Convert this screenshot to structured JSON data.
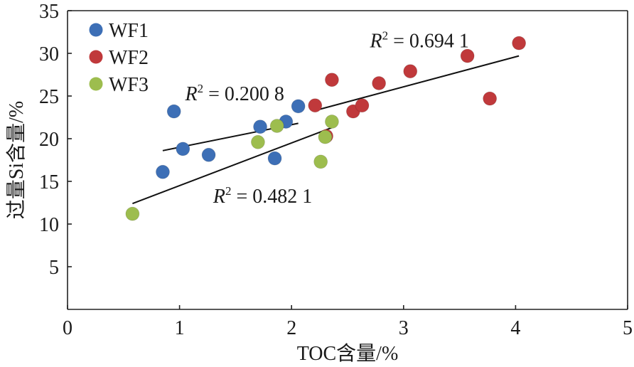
{
  "chart_data": {
    "type": "scatter",
    "xlabel": "TOC含量/%",
    "ylabel": "过量Si含量/%",
    "xlim": [
      0,
      5
    ],
    "ylim": [
      0,
      35
    ],
    "x_ticks": [
      "0",
      "1",
      "2",
      "3",
      "4",
      "5"
    ],
    "y_ticks": [
      "5",
      "10",
      "15",
      "20",
      "25",
      "30",
      "35"
    ],
    "grid": false,
    "legend_position": "top-left",
    "series": [
      {
        "name": "WF1",
        "color": "#3d6fb6",
        "points": [
          [
            0.85,
            16.1
          ],
          [
            0.95,
            23.2
          ],
          [
            1.03,
            18.8
          ],
          [
            1.26,
            18.1
          ],
          [
            1.72,
            21.4
          ],
          [
            1.85,
            17.7
          ],
          [
            1.95,
            22.0
          ],
          [
            2.06,
            23.8
          ]
        ],
        "trendline": {
          "x": [
            0.85,
            2.06
          ],
          "y": [
            18.6,
            21.8
          ]
        },
        "r2_label": {
          "italic": "R",
          "sup": "2",
          "rest": " = 0.200 8",
          "at": [
            1.05,
            24.5
          ]
        }
      },
      {
        "name": "WF2",
        "color": "#c0393b",
        "points": [
          [
            2.21,
            23.9
          ],
          [
            2.31,
            20.3
          ],
          [
            2.36,
            26.9
          ],
          [
            2.55,
            23.2
          ],
          [
            2.63,
            23.9
          ],
          [
            2.78,
            26.5
          ],
          [
            3.06,
            27.9
          ],
          [
            3.57,
            29.7
          ],
          [
            3.77,
            24.7
          ],
          [
            4.03,
            31.2
          ]
        ],
        "trendline": {
          "x": [
            2.21,
            4.03
          ],
          "y": [
            23.3,
            29.7
          ]
        },
        "r2_label": {
          "italic": "R",
          "sup": "2",
          "rest": " = 0.694 1",
          "at": [
            2.7,
            30.7
          ]
        }
      },
      {
        "name": "WF3",
        "color": "#9dbd4e",
        "points": [
          [
            0.58,
            11.2
          ],
          [
            1.7,
            19.6
          ],
          [
            1.87,
            21.5
          ],
          [
            2.26,
            17.3
          ],
          [
            2.3,
            20.2
          ],
          [
            2.36,
            22.0
          ]
        ],
        "trendline": {
          "x": [
            0.58,
            2.36
          ],
          "y": [
            12.4,
            21.3
          ]
        },
        "r2_label": {
          "italic": "R",
          "sup": "2",
          "rest": " = 0.482 1",
          "at": [
            1.3,
            12.5
          ]
        }
      }
    ]
  }
}
